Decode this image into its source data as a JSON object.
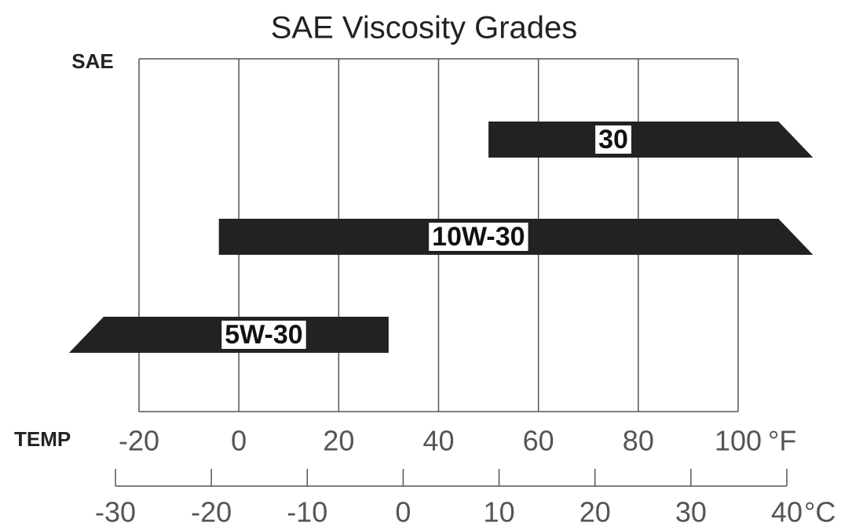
{
  "chart_data": {
    "type": "range_bar",
    "title": "SAE Viscosity Grades",
    "y_label": "SAE",
    "x_label": "TEMP",
    "x_unit": "°F",
    "x2_unit": "°C",
    "xlim": [
      -20,
      100
    ],
    "xticks": [
      -20,
      0,
      20,
      40,
      60,
      80,
      100
    ],
    "x2lim": [
      -30,
      40
    ],
    "x2ticks": [
      -30,
      -20,
      -10,
      0,
      10,
      20,
      30,
      40
    ],
    "grid": true,
    "color": "#222222",
    "series": [
      {
        "name": "30",
        "low": 50,
        "high": 115,
        "open": "high"
      },
      {
        "name": "10W-30",
        "low": -4,
        "high": 115,
        "open": "high"
      },
      {
        "name": "5W-30",
        "low": -34,
        "high": 30,
        "open": "low"
      }
    ]
  }
}
